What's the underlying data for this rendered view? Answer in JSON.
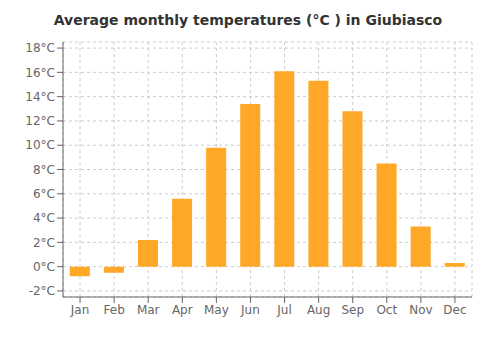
{
  "chart_data": {
    "type": "bar",
    "title": "Average monthly temperatures (°C ) in Giubiasco",
    "categories": [
      "Jan",
      "Feb",
      "Mar",
      "Apr",
      "May",
      "Jun",
      "Jul",
      "Aug",
      "Sep",
      "Oct",
      "Nov",
      "Dec"
    ],
    "values": [
      -0.8,
      -0.5,
      2.2,
      5.6,
      9.8,
      13.4,
      16.1,
      15.3,
      12.8,
      8.5,
      3.3,
      0.3
    ],
    "color": "#FFA726",
    "ylim": [
      -2.5,
      18.5
    ],
    "yticks": [
      {
        "value": -2,
        "label": "-2°C"
      },
      {
        "value": 0,
        "label": "0°C"
      },
      {
        "value": 2,
        "label": "2°C"
      },
      {
        "value": 4,
        "label": "4°C"
      },
      {
        "value": 6,
        "label": "6°C"
      },
      {
        "value": 8,
        "label": "8°C"
      },
      {
        "value": 10,
        "label": "10°C"
      },
      {
        "value": 12,
        "label": "12°C"
      },
      {
        "value": 14,
        "label": "14°C"
      },
      {
        "value": 16,
        "label": "16°C"
      },
      {
        "value": 18,
        "label": "18°C"
      }
    ],
    "grid": true
  }
}
